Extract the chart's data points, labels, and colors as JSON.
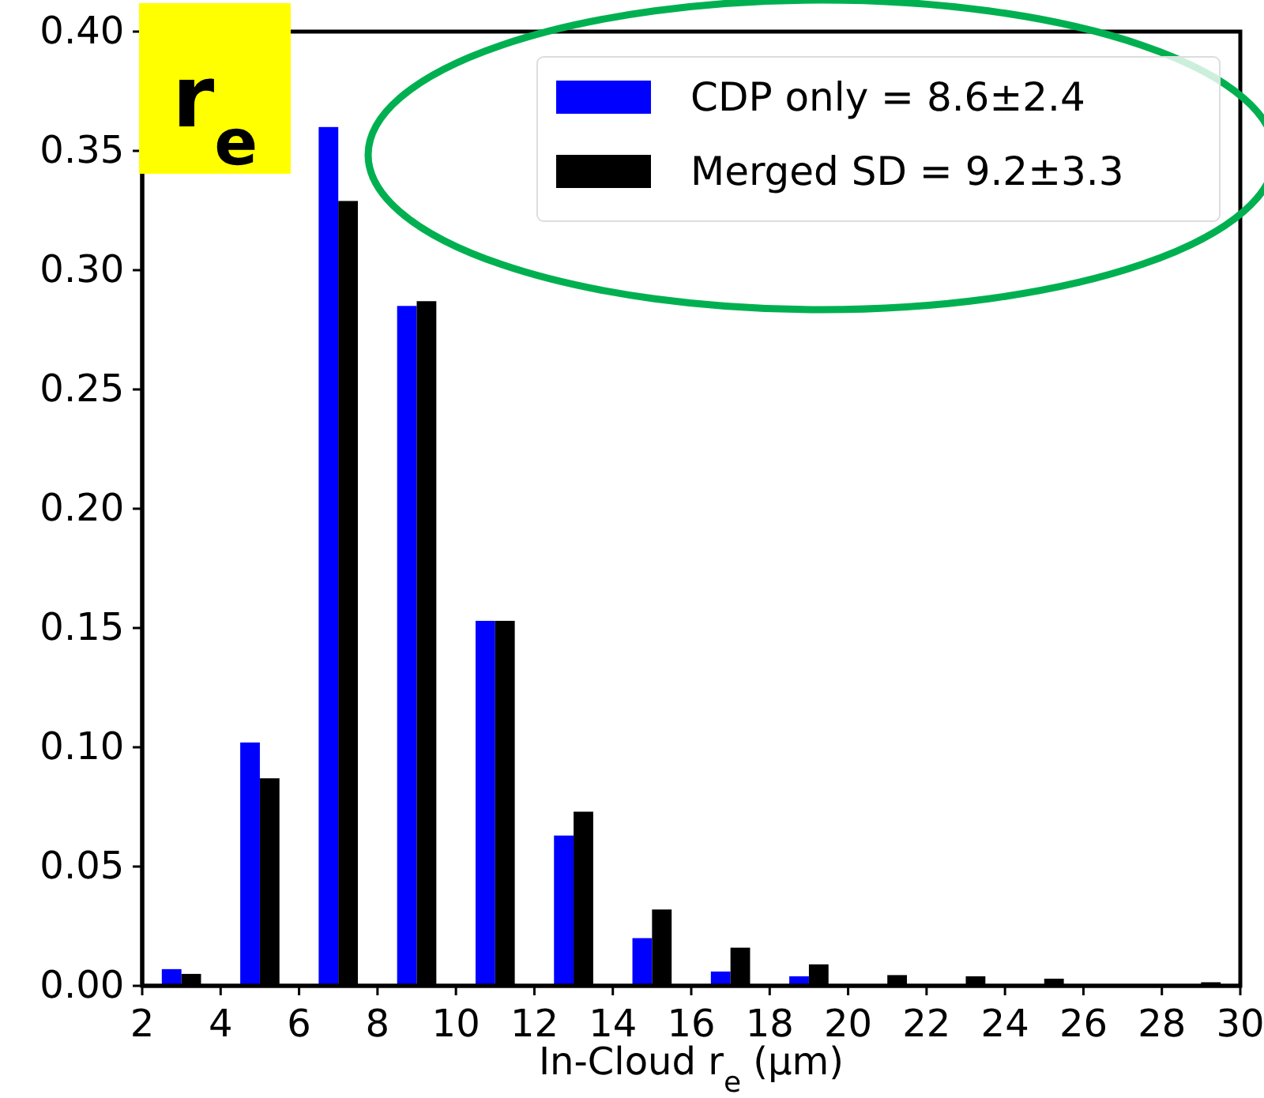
{
  "chart_data": {
    "type": "bar",
    "xlabel": "In-Cloud r$_{e}$ (μm)",
    "annotations": [
      "r$_{e}$"
    ],
    "xlim": [
      2,
      30
    ],
    "xticks": [
      2,
      4,
      6,
      8,
      10,
      12,
      14,
      16,
      18,
      20,
      22,
      24,
      26,
      28,
      30
    ],
    "ylim": [
      0,
      0.4
    ],
    "yticks": [
      {
        "value": 0,
        "label": "0.00"
      },
      {
        "value": 0.05,
        "label": "0.05"
      },
      {
        "value": 0.1,
        "label": "0.10"
      },
      {
        "value": 0.15,
        "label": "0.15"
      },
      {
        "value": 0.2,
        "label": "0.20"
      },
      {
        "value": 0.25,
        "label": "0.25"
      },
      {
        "value": 0.3,
        "label": "0.30"
      },
      {
        "value": 0.35,
        "label": "0.35"
      },
      {
        "value": 0.4,
        "label": "0.40"
      }
    ],
    "legend": "top right",
    "grid": false,
    "series": [
      {
        "name": "CDP only = 8.6±2.4",
        "color": "#0000ff",
        "x": [
          2.75,
          4.75,
          6.75,
          8.75,
          10.75,
          12.75,
          14.75,
          16.75,
          18.75,
          20.75,
          22.75,
          24.75,
          26.75,
          28.75
        ],
        "values": [
          0.007,
          0.102,
          0.36,
          0.285,
          0.153,
          0.063,
          0.02,
          0.006,
          0.004,
          0,
          0,
          0,
          0,
          0
        ]
      },
      {
        "name": "Merged SD = 9.2±3.3",
        "color": "#000000",
        "x": [
          3.25,
          5.25,
          7.25,
          9.25,
          11.25,
          13.25,
          15.25,
          17.25,
          19.25,
          21.25,
          23.25,
          25.25,
          27.25,
          29.25
        ],
        "values": [
          0.005,
          0.087,
          0.329,
          0.287,
          0.153,
          0.073,
          0.032,
          0.016,
          0.009,
          0.0045,
          0.004,
          0.003,
          0,
          0.0015
        ]
      }
    ]
  }
}
